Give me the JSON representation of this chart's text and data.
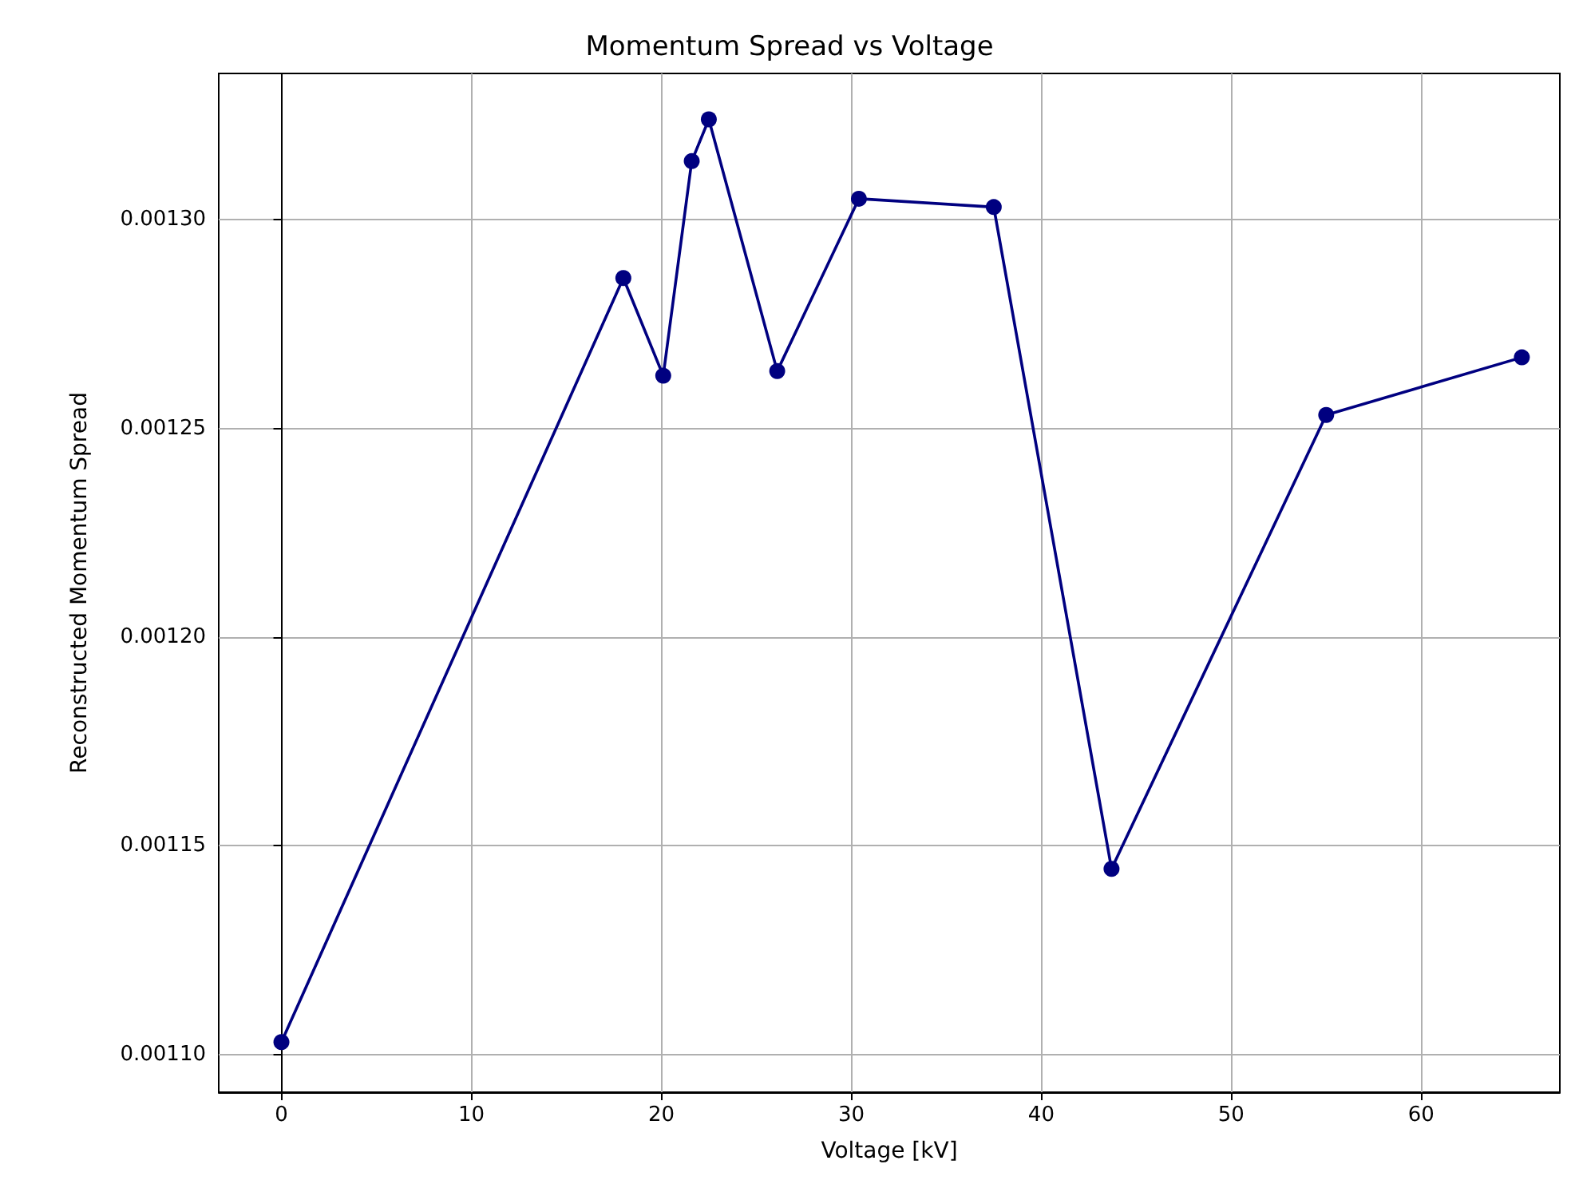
{
  "chart_data": {
    "type": "line",
    "title": "Momentum Spread vs Voltage",
    "xlabel": "Voltage [kV]",
    "ylabel": "Reconstructed Momentum Spread",
    "x": [
      0,
      18.0,
      20.1,
      21.6,
      22.5,
      26.1,
      30.4,
      37.5,
      43.7,
      55.0,
      65.3
    ],
    "series": [
      {
        "color": "#000080",
        "values": [
          0.001103,
          0.001286,
          0.0012626,
          0.001314,
          0.001324,
          0.0012637,
          0.001305,
          0.001303,
          0.0011445,
          0.0012532,
          0.001267
        ]
      }
    ],
    "xlim": [
      -3.3,
      67.3
    ],
    "xticks": [
      0,
      10,
      20,
      30,
      40,
      50,
      60
    ],
    "ylim": [
      0.001091,
      0.001335
    ],
    "yticks": [
      {
        "value": 0.0011,
        "label": "0.00110"
      },
      {
        "value": 0.00115,
        "label": "0.00115"
      },
      {
        "value": 0.0012,
        "label": "0.00120"
      },
      {
        "value": 0.00125,
        "label": "0.00125"
      },
      {
        "value": 0.0013,
        "label": "0.00130"
      }
    ],
    "grid": true,
    "marker": "circle",
    "line_style": "solid"
  }
}
